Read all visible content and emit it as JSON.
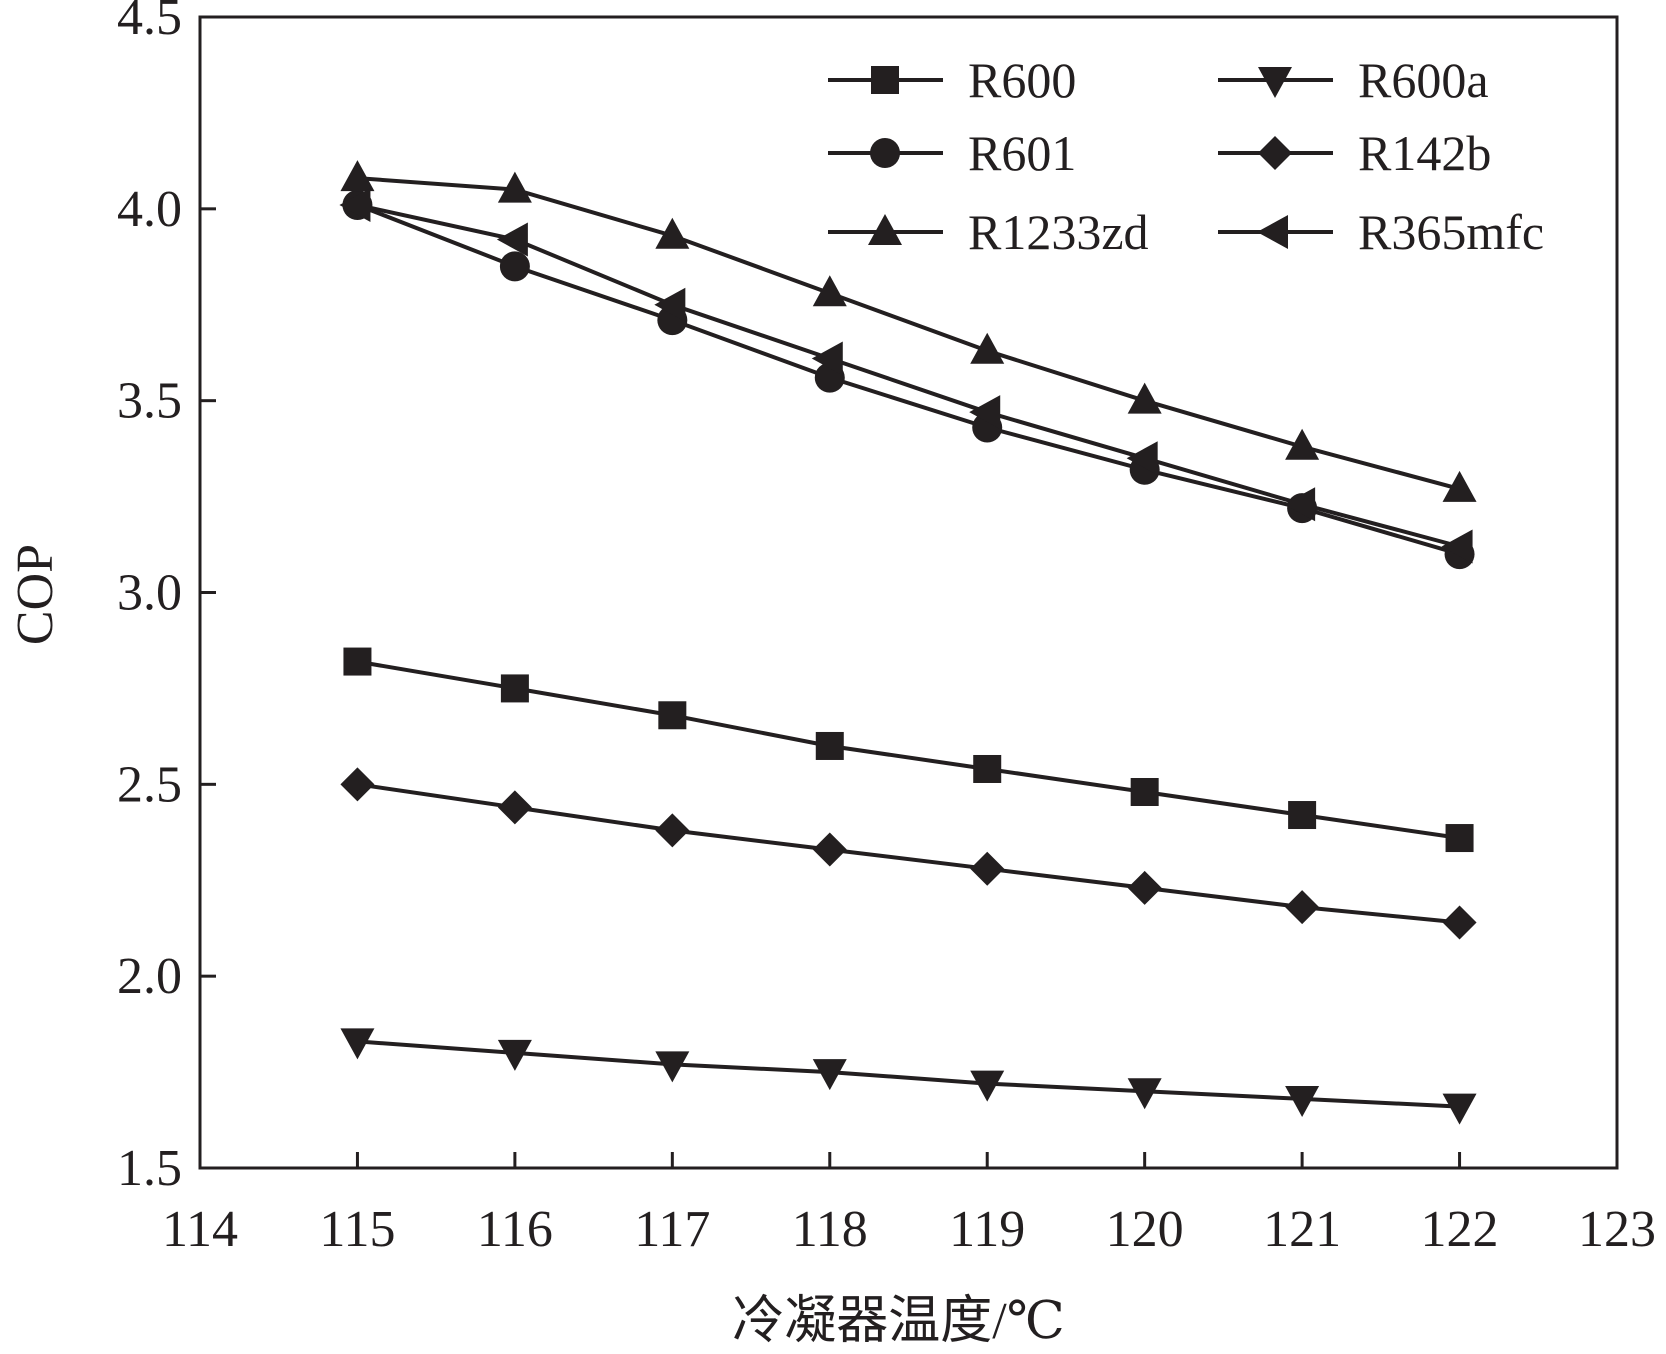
{
  "chart_data": {
    "type": "line",
    "title": "",
    "xlabel": "冷凝器温度/℃",
    "ylabel": "COP",
    "xlim": [
      114,
      123
    ],
    "ylim": [
      1.5,
      4.5
    ],
    "xticks": [
      "114",
      "115",
      "116",
      "117",
      "118",
      "119",
      "120",
      "121",
      "122",
      "123"
    ],
    "yticks": [
      "1.5",
      "2.0",
      "2.5",
      "3.0",
      "3.5",
      "4.0",
      "4.5"
    ],
    "grid": false,
    "legend_position": "top-right",
    "x": [
      115,
      116,
      117,
      118,
      119,
      120,
      121,
      122
    ],
    "series": [
      {
        "name": "R600",
        "marker": "square",
        "values": [
          2.82,
          2.75,
          2.68,
          2.6,
          2.54,
          2.48,
          2.42,
          2.36
        ]
      },
      {
        "name": "R600a",
        "marker": "triangle-down",
        "values": [
          1.83,
          1.8,
          1.77,
          1.75,
          1.72,
          1.7,
          1.68,
          1.66
        ]
      },
      {
        "name": "R601",
        "marker": "circle",
        "values": [
          4.01,
          3.85,
          3.71,
          3.56,
          3.43,
          3.32,
          3.22,
          3.1
        ]
      },
      {
        "name": "R142b",
        "marker": "diamond",
        "values": [
          2.5,
          2.44,
          2.38,
          2.33,
          2.28,
          2.23,
          2.18,
          2.14
        ]
      },
      {
        "name": "R1233zd",
        "marker": "triangle-up",
        "values": [
          4.08,
          4.05,
          3.93,
          3.78,
          3.63,
          3.5,
          3.38,
          3.27
        ]
      },
      {
        "name": "R365mfc",
        "marker": "triangle-left",
        "values": [
          4.01,
          3.92,
          3.75,
          3.61,
          3.47,
          3.35,
          3.23,
          3.12
        ]
      }
    ],
    "colors": {
      "line": "#231f20",
      "axis": "#231f20",
      "background": "#ffffff"
    }
  }
}
